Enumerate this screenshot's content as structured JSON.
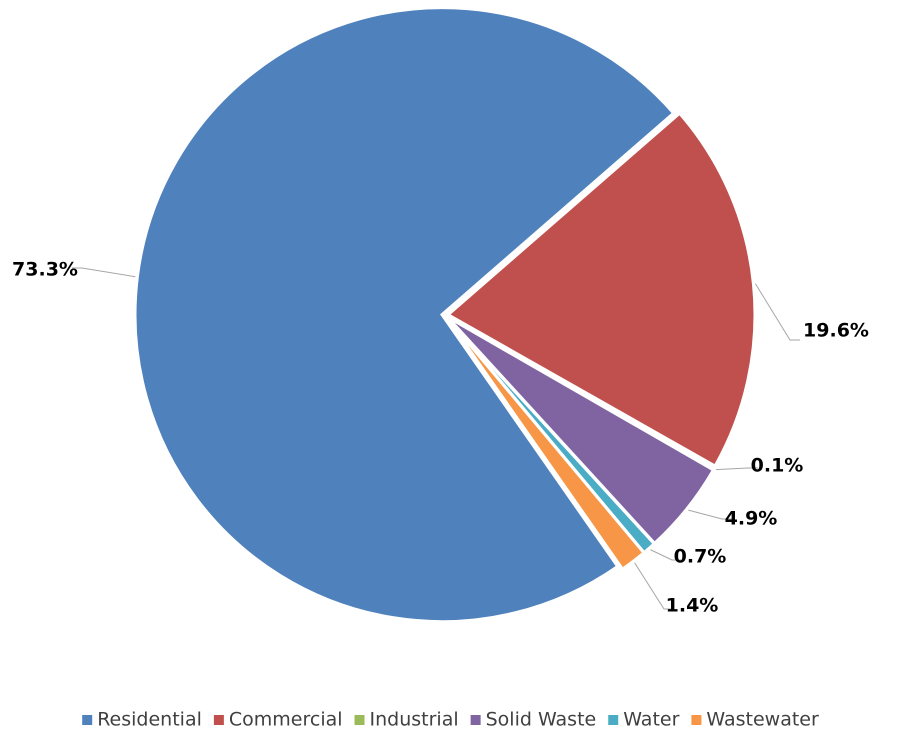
{
  "chart_data": {
    "type": "pie",
    "categories": [
      "Residential",
      "Commercial",
      "Industrial",
      "Solid Waste",
      "Water",
      "Wastewater"
    ],
    "values": [
      73.3,
      19.6,
      0.1,
      4.9,
      0.7,
      1.4
    ],
    "value_labels": [
      "73.3%",
      "19.6%",
      "0.1%",
      "4.9%",
      "0.7%",
      "1.4%"
    ],
    "colors": [
      "#4f81bd",
      "#c0504d",
      "#9bbb59",
      "#8064a2",
      "#4bacc6",
      "#f79646"
    ],
    "legend": "bottom"
  }
}
